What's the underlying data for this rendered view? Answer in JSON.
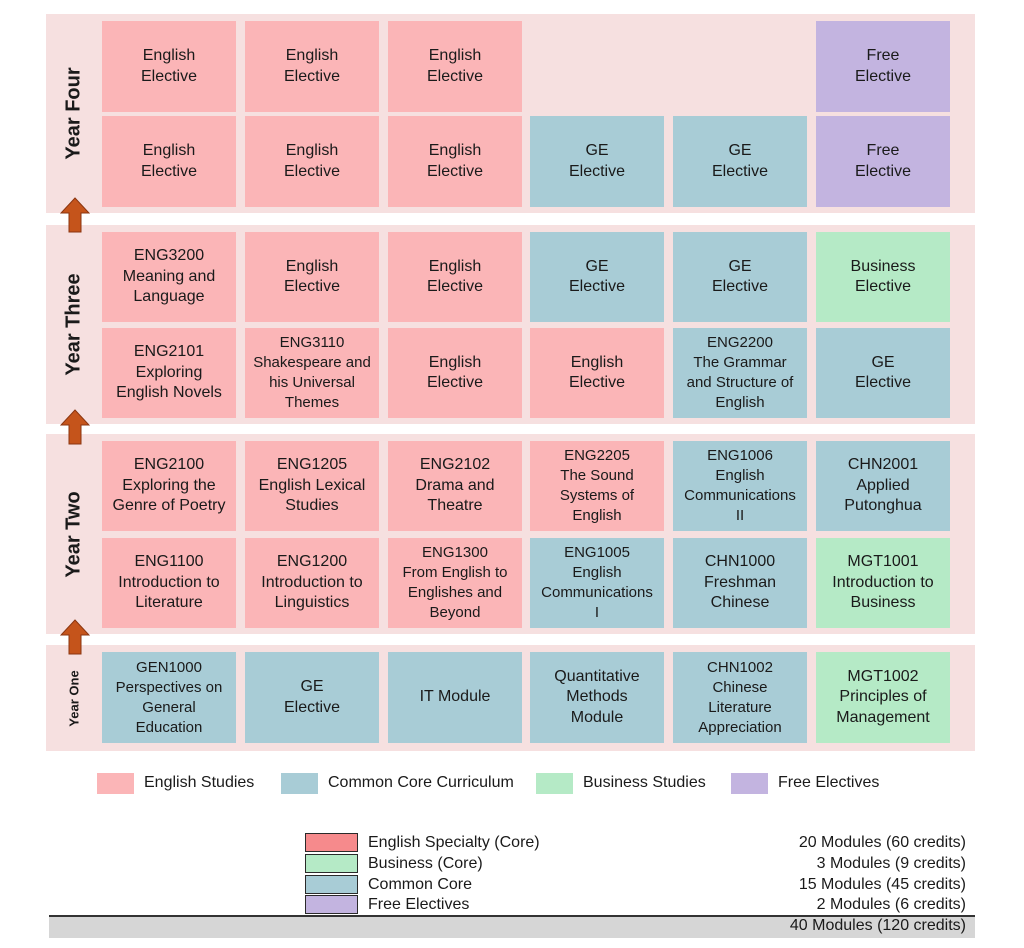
{
  "colors": {
    "band_background": "#f6e0e0",
    "english": "#fbb5b7",
    "common_core": "#a8ccd6",
    "business": "#b5eac6",
    "free": "#c3b4e0",
    "arrow": "#c5541b"
  },
  "years": [
    {
      "label": "Year Four",
      "rows": [
        [
          {
            "text": "English\nElective",
            "category": "pink"
          },
          {
            "text": "English\nElective",
            "category": "pink"
          },
          {
            "text": "English\nElective",
            "category": "pink"
          },
          null,
          null,
          {
            "text": "Free\nElective",
            "category": "purple"
          }
        ],
        [
          {
            "text": "English\nElective",
            "category": "pink"
          },
          {
            "text": "English\nElective",
            "category": "pink"
          },
          {
            "text": "English\nElective",
            "category": "pink"
          },
          {
            "text": "GE\nElective",
            "category": "blue"
          },
          {
            "text": "GE\nElective",
            "category": "blue"
          },
          {
            "text": "Free\nElective",
            "category": "purple"
          }
        ]
      ]
    },
    {
      "label": "Year Three",
      "rows": [
        [
          {
            "text": "ENG3200\nMeaning and\nLanguage",
            "category": "pink"
          },
          {
            "text": "English\nElective",
            "category": "pink"
          },
          {
            "text": "English\nElective",
            "category": "pink"
          },
          {
            "text": "GE\nElective",
            "category": "blue"
          },
          {
            "text": "GE\nElective",
            "category": "blue"
          },
          {
            "text": "Business\nElective",
            "category": "green"
          }
        ],
        [
          {
            "text": "ENG2101\nExploring\nEnglish Novels",
            "category": "pink"
          },
          {
            "text": "ENG3110\nShakespeare and\nhis Universal\nThemes",
            "category": "pink"
          },
          {
            "text": "English\nElective",
            "category": "pink"
          },
          {
            "text": "English\nElective",
            "category": "pink"
          },
          {
            "text": "ENG2200\nThe Grammar\nand Structure of\nEnglish",
            "category": "blue"
          },
          {
            "text": "GE\nElective",
            "category": "blue"
          }
        ]
      ]
    },
    {
      "label": "Year Two",
      "rows": [
        [
          {
            "text": "ENG2100\nExploring the\nGenre of Poetry",
            "category": "pink"
          },
          {
            "text": "ENG1205\nEnglish Lexical\nStudies",
            "category": "pink"
          },
          {
            "text": "ENG2102\nDrama and\nTheatre",
            "category": "pink"
          },
          {
            "text": "ENG2205\nThe Sound\nSystems of\nEnglish",
            "category": "pink"
          },
          {
            "text": "ENG1006\nEnglish\nCommunications\nII",
            "category": "blue"
          },
          {
            "text": "CHN2001\nApplied\nPutonghua",
            "category": "blue"
          }
        ],
        [
          {
            "text": "ENG1100\nIntroduction to\nLiterature",
            "category": "pink"
          },
          {
            "text": "ENG1200\nIntroduction to\nLinguistics",
            "category": "pink"
          },
          {
            "text": "ENG1300\nFrom English to\nEnglishes and\nBeyond",
            "category": "pink"
          },
          {
            "text": "ENG1005\nEnglish\nCommunications\nI",
            "category": "blue"
          },
          {
            "text": "CHN1000\nFreshman\nChinese",
            "category": "blue"
          },
          {
            "text": "MGT1001\nIntroduction to\nBusiness",
            "category": "green"
          }
        ]
      ]
    },
    {
      "label": "Year One",
      "rows": [
        [
          {
            "text": "GEN1000\nPerspectives on\nGeneral\nEducation",
            "category": "blue"
          },
          {
            "text": "GE\nElective",
            "category": "blue"
          },
          {
            "text": "IT Module",
            "category": "blue"
          },
          {
            "text": "Quantitative\nMethods\nModule",
            "category": "blue"
          },
          {
            "text": "CHN1002\nChinese\nLiterature\nAppreciation",
            "category": "blue"
          },
          {
            "text": "MGT1002\nPrinciples of\nManagement",
            "category": "green"
          }
        ]
      ]
    }
  ],
  "legend": [
    {
      "label": "English Studies",
      "category": "pink"
    },
    {
      "label": "Common Core Curriculum",
      "category": "blue"
    },
    {
      "label": "Business Studies",
      "category": "green"
    },
    {
      "label": "Free Electives",
      "category": "purple"
    }
  ],
  "summary": {
    "rows": [
      {
        "label": "English Specialty (Core)",
        "value": "20 Modules (60 credits)",
        "swatch": "#f68a8c"
      },
      {
        "label": "Business (Core)",
        "value": "3 Modules (9 credits)",
        "swatch": "#b5eac6"
      },
      {
        "label": "Common Core",
        "value": "15 Modules (45 credits)",
        "swatch": "#a8ccd6"
      },
      {
        "label": "Free Electives",
        "value": "2 Modules (6 credits)",
        "swatch": "#c3b4e0"
      }
    ],
    "total": "40 Modules (120 credits)"
  }
}
